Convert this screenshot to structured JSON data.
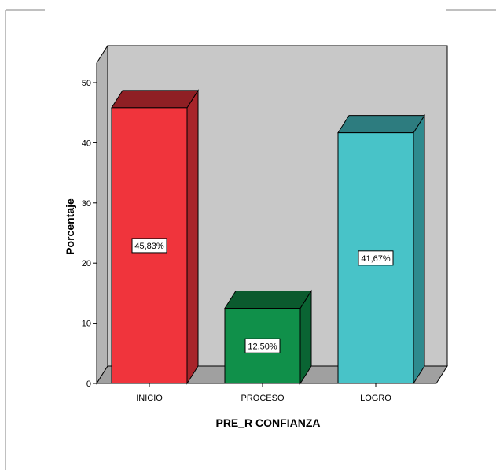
{
  "chart_data": {
    "type": "bar",
    "categories": [
      "INICIO",
      "PROCESO",
      "LOGRO"
    ],
    "values": [
      45.83,
      12.5,
      41.67
    ],
    "data_labels": [
      "45,83%",
      "12,50%",
      "41,67%"
    ],
    "title": "",
    "xlabel": "PRE_R CONFIANZA",
    "ylabel": "Porcentaje",
    "ylim": [
      0,
      50
    ],
    "yticks": [
      "0",
      "10",
      "20",
      "30",
      "40",
      "50"
    ],
    "grid": false,
    "style": "3d",
    "colors": {
      "bars": [
        "#f0343c",
        "#10904a",
        "#48c3c8"
      ],
      "bar_tops": [
        "#8f1f24",
        "#0b5a2e",
        "#2d7c7f"
      ],
      "bar_sides": [
        "#a8242a",
        "#0a6433",
        "#2e8a8e"
      ],
      "back_wall": "#c8c8c8",
      "side_wall": "#b4b4b4",
      "floor": "#a0a0a0",
      "frame": "#808080"
    }
  }
}
